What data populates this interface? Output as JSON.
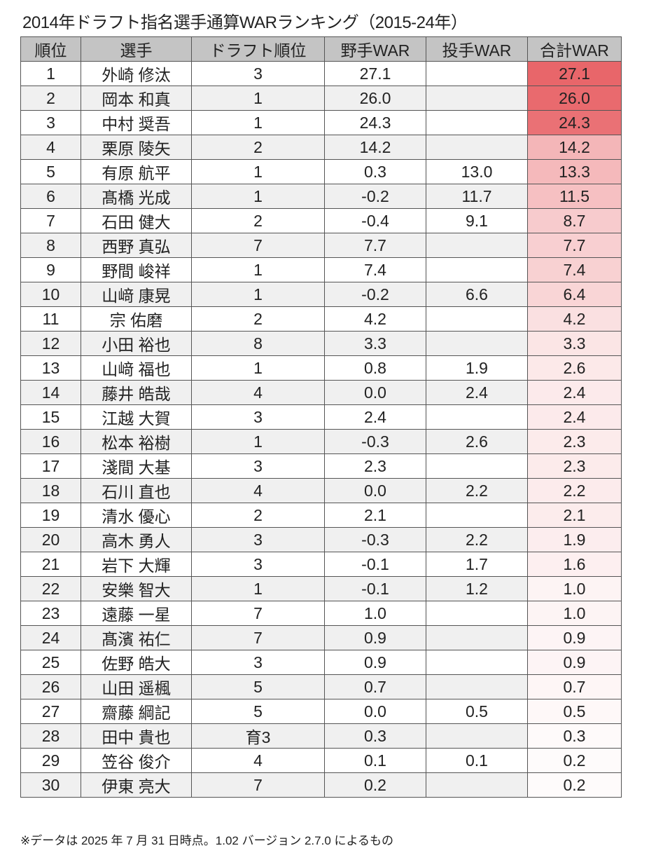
{
  "title": "2014年ドラフト指名選手通算WARランキング（2015-24年）",
  "headers": [
    "順位",
    "選手",
    "ドラフト順位",
    "野手WAR",
    "投手WAR",
    "合計WAR"
  ],
  "colors": {
    "header_bg": "#c4c4c4",
    "alt_row_bg": "#f0f0f0",
    "total_high": "#e8666a",
    "total_low": "#ffffff"
  },
  "rows": [
    [
      "1",
      "外崎 修汰",
      "3",
      "27.1",
      "",
      "27.1"
    ],
    [
      "2",
      "岡本 和真",
      "1",
      "26.0",
      "",
      "26.0"
    ],
    [
      "3",
      "中村 奨吾",
      "1",
      "24.3",
      "",
      "24.3"
    ],
    [
      "4",
      "栗原 陵矢",
      "2",
      "14.2",
      "",
      "14.2"
    ],
    [
      "5",
      "有原 航平",
      "1",
      "0.3",
      "13.0",
      "13.3"
    ],
    [
      "6",
      "髙橋 光成",
      "1",
      "-0.2",
      "11.7",
      "11.5"
    ],
    [
      "7",
      "石田 健大",
      "2",
      "-0.4",
      "9.1",
      "8.7"
    ],
    [
      "8",
      "西野 真弘",
      "7",
      "7.7",
      "",
      "7.7"
    ],
    [
      "9",
      "野間 峻祥",
      "1",
      "7.4",
      "",
      "7.4"
    ],
    [
      "10",
      "山﨑 康晃",
      "1",
      "-0.2",
      "6.6",
      "6.4"
    ],
    [
      "11",
      "宗 佑磨",
      "2",
      "4.2",
      "",
      "4.2"
    ],
    [
      "12",
      "小田 裕也",
      "8",
      "3.3",
      "",
      "3.3"
    ],
    [
      "13",
      "山﨑 福也",
      "1",
      "0.8",
      "1.9",
      "2.6"
    ],
    [
      "14",
      "藤井 皓哉",
      "4",
      "0.0",
      "2.4",
      "2.4"
    ],
    [
      "15",
      "江越 大賀",
      "3",
      "2.4",
      "",
      "2.4"
    ],
    [
      "16",
      "松本 裕樹",
      "1",
      "-0.3",
      "2.6",
      "2.3"
    ],
    [
      "17",
      "淺間 大基",
      "3",
      "2.3",
      "",
      "2.3"
    ],
    [
      "18",
      "石川 直也",
      "4",
      "0.0",
      "2.2",
      "2.2"
    ],
    [
      "19",
      "清水 優心",
      "2",
      "2.1",
      "",
      "2.1"
    ],
    [
      "20",
      "高木 勇人",
      "3",
      "-0.3",
      "2.2",
      "1.9"
    ],
    [
      "21",
      "岩下 大輝",
      "3",
      "-0.1",
      "1.7",
      "1.6"
    ],
    [
      "22",
      "安樂 智大",
      "1",
      "-0.1",
      "1.2",
      "1.0"
    ],
    [
      "23",
      "遠藤 一星",
      "7",
      "1.0",
      "",
      "1.0"
    ],
    [
      "24",
      "髙濱 祐仁",
      "7",
      "0.9",
      "",
      "0.9"
    ],
    [
      "25",
      "佐野 皓大",
      "3",
      "0.9",
      "",
      "0.9"
    ],
    [
      "26",
      "山田 遥楓",
      "5",
      "0.7",
      "",
      "0.7"
    ],
    [
      "27",
      "齋藤 綱記",
      "5",
      "0.0",
      "0.5",
      "0.5"
    ],
    [
      "28",
      "田中 貴也",
      "育3",
      "0.3",
      "",
      "0.3"
    ],
    [
      "29",
      "笠谷 俊介",
      "4",
      "0.1",
      "0.1",
      "0.2"
    ],
    [
      "30",
      "伊東 亮大",
      "7",
      "0.2",
      "",
      "0.2"
    ]
  ],
  "footnote": "※データは 2025 年 7 月 31 日時点。1.02 バージョン 2.7.0 によるもの"
}
